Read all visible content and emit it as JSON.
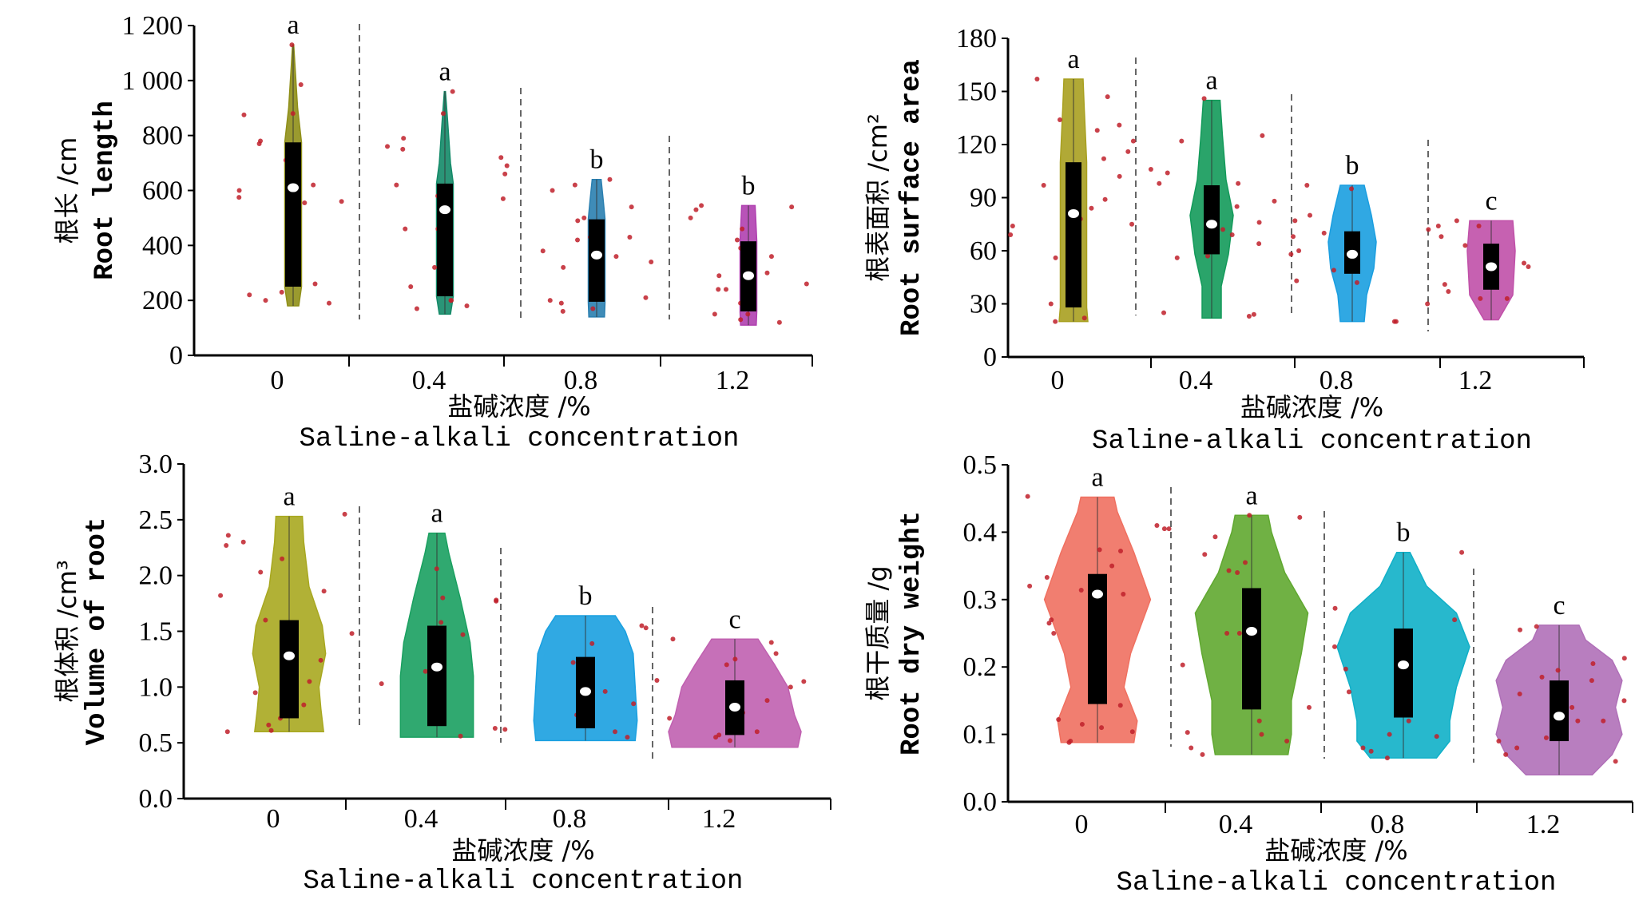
{
  "chart_data": [
    {
      "type": "violin",
      "ylabel_cn": "根长 /cm",
      "ylabel_en": "Root length",
      "xlabel_cn": "盐碱浓度 /%",
      "xlabel_en": "Saline-alkali concentration",
      "categories": [
        "0",
        "0.4",
        "0.8",
        "1.2"
      ],
      "ylim": [
        0,
        1200
      ],
      "yticks": [
        0,
        200,
        400,
        600,
        800,
        1000,
        1200
      ],
      "ytick_labels": [
        "0",
        "200",
        "400",
        "600",
        "800",
        "1 000",
        "1 200"
      ],
      "groups": [
        {
          "category": "0",
          "letter": "a",
          "color": "#8f8f18",
          "min": 180,
          "max": 1130,
          "q1": 250,
          "q3": 775,
          "median": 610,
          "profile": [
            [
              180,
              0.5
            ],
            [
              250,
              0.75
            ],
            [
              500,
              0.75
            ],
            [
              775,
              0.75
            ],
            [
              900,
              0.4
            ],
            [
              1130,
              0.05
            ]
          ],
          "points": [
            1130,
            985,
            875,
            780,
            710,
            650,
            600,
            560,
            555,
            230,
            200,
            190,
            620,
            575,
            880,
            770,
            260,
            220
          ]
        },
        {
          "category": "0.4",
          "letter": "a",
          "color": "#138a68",
          "min": 150,
          "max": 960,
          "q1": 215,
          "q3": 625,
          "median": 530,
          "profile": [
            [
              150,
              0.5
            ],
            [
              215,
              0.75
            ],
            [
              625,
              0.75
            ],
            [
              700,
              0.5
            ],
            [
              850,
              0.25
            ],
            [
              960,
              0.05
            ]
          ],
          "points": [
            960,
            880,
            790,
            760,
            720,
            660,
            620,
            580,
            570,
            460,
            320,
            200,
            180,
            170,
            750,
            690,
            460,
            250,
            200
          ]
        },
        {
          "category": "0.8",
          "letter": "b",
          "color": "#2a7fb0",
          "min": 140,
          "max": 640,
          "q1": 195,
          "q3": 495,
          "median": 365,
          "profile": [
            [
              140,
              0.7
            ],
            [
              195,
              0.75
            ],
            [
              495,
              0.75
            ],
            [
              560,
              0.6
            ],
            [
              640,
              0.4
            ]
          ],
          "points": [
            620,
            600,
            540,
            490,
            420,
            380,
            340,
            320,
            210,
            170,
            160,
            640,
            500,
            430,
            360,
            200,
            190,
            430
          ]
        },
        {
          "category": "1.2",
          "letter": "b",
          "color": "#b040b0",
          "min": 110,
          "max": 545,
          "q1": 160,
          "q3": 415,
          "median": 290,
          "profile": [
            [
              110,
              0.7
            ],
            [
              160,
              0.75
            ],
            [
              415,
              0.75
            ],
            [
              545,
              0.6
            ]
          ],
          "points": [
            530,
            500,
            420,
            360,
            300,
            260,
            240,
            190,
            150,
            130,
            540,
            460,
            390,
            240,
            150,
            120,
            545,
            290
          ]
        }
      ]
    },
    {
      "type": "violin",
      "ylabel_cn": "根表面积 /cm²",
      "ylabel_en": "Root surface area",
      "xlabel_cn": "盐碱浓度 /%",
      "xlabel_en": "Saline-alkali concentration",
      "categories": [
        "0",
        "0.4",
        "0.8",
        "1.2"
      ],
      "ylim": [
        0,
        180
      ],
      "yticks": [
        0,
        30,
        60,
        90,
        120,
        150,
        180
      ],
      "ytick_labels": [
        "0",
        "30",
        "60",
        "90",
        "120",
        "150",
        "180"
      ],
      "groups": [
        {
          "category": "0",
          "letter": "a",
          "color": "#a8a020",
          "min": 20,
          "max": 157,
          "q1": 28,
          "q3": 110,
          "median": 81,
          "profile": [
            [
              20,
              0.6
            ],
            [
              28,
              0.55
            ],
            [
              110,
              0.55
            ],
            [
              140,
              0.45
            ],
            [
              157,
              0.4
            ]
          ],
          "points": [
            147,
            131,
            122,
            116,
            102,
            89,
            84,
            78,
            74,
            30,
            20,
            157,
            134,
            128,
            112,
            97,
            75,
            69,
            56,
            22
          ]
        },
        {
          "category": "0.4",
          "letter": "a",
          "color": "#139a5a",
          "min": 22,
          "max": 145,
          "q1": 58,
          "q3": 97,
          "median": 75,
          "profile": [
            [
              22,
              0.4
            ],
            [
              40,
              0.4
            ],
            [
              58,
              0.7
            ],
            [
              80,
              0.9
            ],
            [
              100,
              0.6
            ],
            [
              125,
              0.45
            ],
            [
              145,
              0.35
            ]
          ],
          "points": [
            146,
            98,
            88,
            82,
            76,
            72,
            57,
            25,
            23,
            125,
            122,
            106,
            104,
            98,
            85,
            69,
            64,
            56,
            24
          ]
        },
        {
          "category": "0.8",
          "letter": "b",
          "color": "#1a9ee0",
          "min": 20,
          "max": 97,
          "q1": 47,
          "q3": 71,
          "median": 58,
          "profile": [
            [
              20,
              0.5
            ],
            [
              35,
              0.6
            ],
            [
              50,
              0.9
            ],
            [
              65,
              1
            ],
            [
              80,
              0.8
            ],
            [
              97,
              0.5
            ]
          ],
          "points": [
            80,
            68,
            60,
            58,
            42,
            20,
            20,
            97,
            95,
            77,
            70,
            52,
            43,
            49
          ]
        },
        {
          "category": "1.2",
          "letter": "c",
          "color": "#c050a8",
          "min": 21,
          "max": 77,
          "q1": 38,
          "q3": 64,
          "median": 51,
          "profile": [
            [
              21,
              0.3
            ],
            [
              35,
              0.9
            ],
            [
              60,
              1
            ],
            [
              77,
              0.9
            ]
          ],
          "points": [
            77,
            63,
            51,
            41,
            37,
            30,
            33,
            74,
            74,
            68,
            40,
            33,
            72,
            53
          ]
        }
      ]
    },
    {
      "type": "violin",
      "ylabel_cn": "根体积 /cm³",
      "ylabel_en": "Volume of root",
      "xlabel_cn": "盐碱浓度 /%",
      "xlabel_en": "Saline-alkali concentration",
      "categories": [
        "0",
        "0.4",
        "0.8",
        "1.2"
      ],
      "ylim": [
        0,
        3.0
      ],
      "yticks": [
        0,
        0.5,
        1.0,
        1.5,
        2.0,
        2.5,
        3.0
      ],
      "ytick_labels": [
        "0.0",
        "0.5",
        "1.0",
        "1.5",
        "2.0",
        "2.5",
        "3.0"
      ],
      "groups": [
        {
          "category": "0",
          "letter": "a",
          "color": "#a8a820",
          "min": 0.6,
          "max": 2.53,
          "q1": 0.72,
          "q3": 1.6,
          "median": 1.28,
          "profile": [
            [
              0.6,
              0.52
            ],
            [
              0.8,
              0.48
            ],
            [
              1.0,
              0.45
            ],
            [
              1.3,
              0.55
            ],
            [
              1.55,
              0.5
            ],
            [
              1.9,
              0.3
            ],
            [
              2.3,
              0.22
            ],
            [
              2.53,
              0.2
            ]
          ],
          "points": [
            2.15,
            1.86,
            1.6,
            1.48,
            1.24,
            1.05,
            0.95,
            0.66,
            0.6,
            2.55,
            2.36,
            2.27,
            2.3,
            2.03,
            1.82,
            0.84,
            0.72,
            0.61
          ]
        },
        {
          "category": "0.4",
          "letter": "a",
          "color": "#1aa060",
          "min": 0.55,
          "max": 2.38,
          "q1": 0.65,
          "q3": 1.55,
          "median": 1.18,
          "profile": [
            [
              0.55,
              0.55
            ],
            [
              0.8,
              0.55
            ],
            [
              1.1,
              0.55
            ],
            [
              1.4,
              0.5
            ],
            [
              1.8,
              0.35
            ],
            [
              2.2,
              0.18
            ],
            [
              2.38,
              0.12
            ]
          ],
          "points": [
            1.8,
            1.77,
            1.58,
            1.14,
            1.03,
            0.63,
            0.56,
            2.06,
            1.78,
            1.47,
            1.18,
            0.62
          ]
        },
        {
          "category": "0.8",
          "letter": "b",
          "color": "#1aa0e0",
          "min": 0.52,
          "max": 1.64,
          "q1": 0.63,
          "q3": 1.27,
          "median": 0.96,
          "profile": [
            [
              0.52,
              0.75
            ],
            [
              0.7,
              0.78
            ],
            [
              1.0,
              0.75
            ],
            [
              1.3,
              0.72
            ],
            [
              1.5,
              0.6
            ],
            [
              1.64,
              0.45
            ]
          ],
          "points": [
            1.55,
            1.22,
            0.9,
            0.6,
            0.55,
            1.53,
            1.39,
            1.06,
            0.96,
            0.85,
            0.75
          ]
        },
        {
          "category": "1.2",
          "letter": "c",
          "color": "#c060b0",
          "min": 0.46,
          "max": 1.43,
          "q1": 0.57,
          "q3": 1.06,
          "median": 0.82,
          "profile": [
            [
              0.46,
              0.95
            ],
            [
              0.6,
              1.0
            ],
            [
              0.75,
              0.9
            ],
            [
              1.0,
              0.8
            ],
            [
              1.2,
              0.6
            ],
            [
              1.43,
              0.35
            ]
          ],
          "points": [
            1.43,
            1.05,
            0.77,
            0.6,
            0.57,
            1.4,
            1.3,
            1.25,
            1.2,
            1.0,
            0.88,
            0.72,
            0.55,
            0.52
          ]
        }
      ]
    },
    {
      "type": "violin",
      "ylabel_cn": "根干质量 /g",
      "ylabel_en": "Root dry weight",
      "xlabel_cn": "盐碱浓度 /%",
      "xlabel_en": "Saline-alkali concentration",
      "categories": [
        "0",
        "0.4",
        "0.8",
        "1.2"
      ],
      "ylim": [
        0,
        0.5
      ],
      "yticks": [
        0,
        0.1,
        0.2,
        0.3,
        0.4,
        0.5
      ],
      "ytick_labels": [
        "0.0",
        "0.1",
        "0.2",
        "0.3",
        "0.4",
        "0.5"
      ],
      "groups": [
        {
          "category": "0",
          "letter": "a",
          "color": "#f07060",
          "min": 0.088,
          "max": 0.452,
          "q1": 0.145,
          "q3": 0.338,
          "median": 0.308,
          "profile": [
            [
              0.088,
              0.55
            ],
            [
              0.12,
              0.6
            ],
            [
              0.17,
              0.4
            ],
            [
              0.22,
              0.5
            ],
            [
              0.3,
              0.8
            ],
            [
              0.37,
              0.55
            ],
            [
              0.43,
              0.3
            ],
            [
              0.452,
              0.25
            ]
          ],
          "points": [
            0.405,
            0.372,
            0.333,
            0.308,
            0.265,
            0.25,
            0.11,
            0.09,
            0.453,
            0.405,
            0.374,
            0.32,
            0.314,
            0.27,
            0.143,
            0.122,
            0.104,
            0.088,
            0.41,
            0.35,
            0.115
          ]
        },
        {
          "category": "0.4",
          "letter": "a",
          "color": "#60a830",
          "min": 0.07,
          "max": 0.425,
          "q1": 0.137,
          "q3": 0.317,
          "median": 0.253,
          "profile": [
            [
              0.07,
              0.55
            ],
            [
              0.1,
              0.6
            ],
            [
              0.15,
              0.6
            ],
            [
              0.22,
              0.75
            ],
            [
              0.28,
              0.85
            ],
            [
              0.34,
              0.5
            ],
            [
              0.4,
              0.3
            ],
            [
              0.425,
              0.25
            ]
          ],
          "points": [
            0.422,
            0.367,
            0.343,
            0.25,
            0.14,
            0.1,
            0.08,
            0.07,
            0.425,
            0.393,
            0.34,
            0.274,
            0.25,
            0.203,
            0.103,
            0.09,
            0.355,
            0.12
          ]
        },
        {
          "category": "0.8",
          "letter": "b",
          "color": "#10b0c8",
          "min": 0.065,
          "max": 0.37,
          "q1": 0.125,
          "q3": 0.257,
          "median": 0.203,
          "profile": [
            [
              0.065,
              0.5
            ],
            [
              0.09,
              0.7
            ],
            [
              0.12,
              0.7
            ],
            [
              0.17,
              0.8
            ],
            [
              0.23,
              1.0
            ],
            [
              0.28,
              0.8
            ],
            [
              0.32,
              0.35
            ],
            [
              0.37,
              0.1
            ]
          ],
          "points": [
            0.37,
            0.197,
            0.1,
            0.08,
            0.065,
            0.287,
            0.163,
            0.097,
            0.27,
            0.23,
            0.12,
            0.075
          ]
        },
        {
          "category": "1.2",
          "letter": "c",
          "color": "#b070b8",
          "min": 0.04,
          "max": 0.262,
          "q1": 0.09,
          "q3": 0.18,
          "median": 0.127,
          "profile": [
            [
              0.04,
              0.5
            ],
            [
              0.07,
              0.8
            ],
            [
              0.1,
              0.95
            ],
            [
              0.14,
              0.85
            ],
            [
              0.18,
              0.95
            ],
            [
              0.21,
              0.8
            ],
            [
              0.24,
              0.4
            ],
            [
              0.262,
              0.3
            ]
          ],
          "points": [
            0.26,
            0.255,
            0.205,
            0.195,
            0.16,
            0.12,
            0.06,
            0.213,
            0.185,
            0.15,
            0.12,
            0.095,
            0.09,
            0.08,
            0.07,
            0.18,
            0.14
          ]
        }
      ]
    }
  ]
}
